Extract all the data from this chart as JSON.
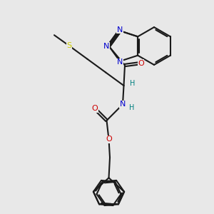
{
  "bg_color": "#e8e8e8",
  "bond_color": "#1a1a1a",
  "bond_width": 1.5,
  "atom_colors": {
    "N": "#0000cc",
    "O": "#cc0000",
    "S": "#cccc00",
    "H": "#008080",
    "C": "#1a1a1a"
  },
  "font_size_atom": 8,
  "font_size_h": 7
}
